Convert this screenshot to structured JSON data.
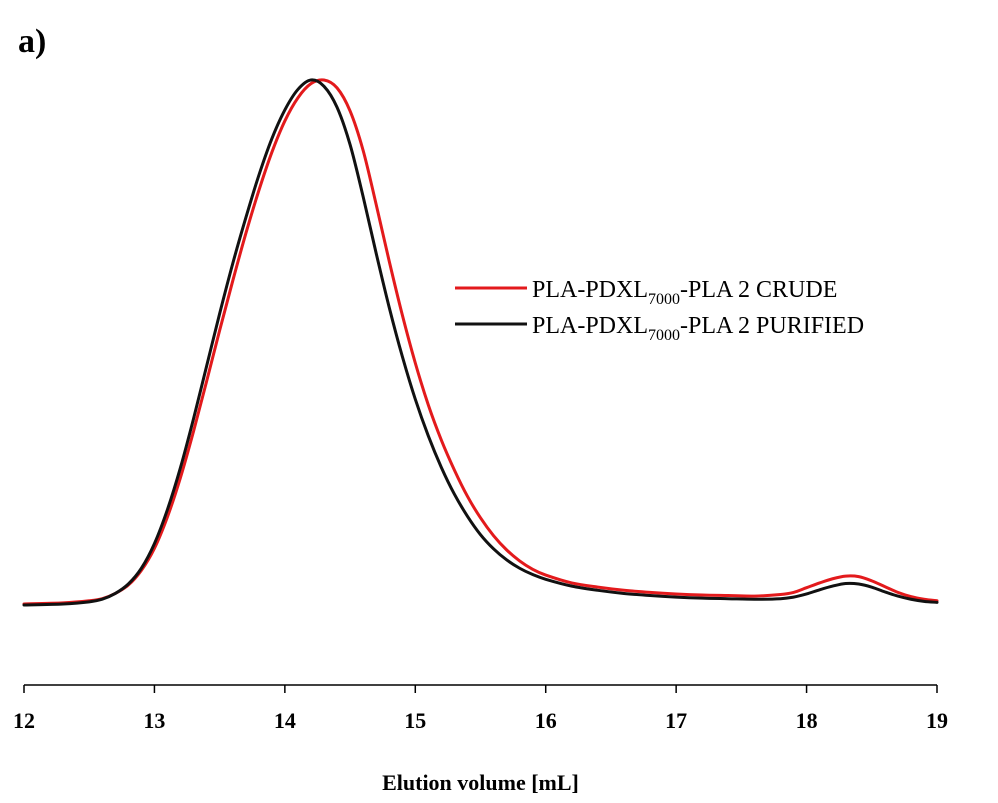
{
  "panel_label": "a)",
  "chart_data": {
    "type": "line",
    "title": "",
    "xlabel": "Elution volume [mL]",
    "ylabel": "",
    "xlim": [
      12,
      19
    ],
    "ylim": [
      -0.16,
      1.0
    ],
    "xticks": [
      12,
      13,
      14,
      15,
      16,
      17,
      18,
      19
    ],
    "grid": false,
    "legend_position": "right",
    "series": [
      {
        "name": "PLA-PDXL7000-PLA 2 CRUDE",
        "name_parts": {
          "prefix": "PLA-PDXL",
          "sub": "7000",
          "suffix": "-PLA 2 CRUDE"
        },
        "color": "#e31a1c",
        "points": [
          [
            12.0,
            0.002
          ],
          [
            12.3,
            0.004
          ],
          [
            12.5,
            0.008
          ],
          [
            12.6,
            0.012
          ],
          [
            12.7,
            0.022
          ],
          [
            12.8,
            0.038
          ],
          [
            12.9,
            0.066
          ],
          [
            13.0,
            0.108
          ],
          [
            13.1,
            0.168
          ],
          [
            13.2,
            0.243
          ],
          [
            13.3,
            0.331
          ],
          [
            13.4,
            0.426
          ],
          [
            13.5,
            0.523
          ],
          [
            13.6,
            0.617
          ],
          [
            13.7,
            0.707
          ],
          [
            13.8,
            0.789
          ],
          [
            13.9,
            0.862
          ],
          [
            14.0,
            0.922
          ],
          [
            14.1,
            0.966
          ],
          [
            14.2,
            0.993
          ],
          [
            14.3,
            1.0
          ],
          [
            14.4,
            0.985
          ],
          [
            14.5,
            0.941
          ],
          [
            14.6,
            0.866
          ],
          [
            14.7,
            0.763
          ],
          [
            14.8,
            0.655
          ],
          [
            14.9,
            0.553
          ],
          [
            15.0,
            0.461
          ],
          [
            15.1,
            0.381
          ],
          [
            15.2,
            0.314
          ],
          [
            15.3,
            0.257
          ],
          [
            15.4,
            0.207
          ],
          [
            15.5,
            0.166
          ],
          [
            15.6,
            0.132
          ],
          [
            15.7,
            0.105
          ],
          [
            15.8,
            0.084
          ],
          [
            15.9,
            0.068
          ],
          [
            16.0,
            0.057
          ],
          [
            16.2,
            0.042
          ],
          [
            16.4,
            0.034
          ],
          [
            16.6,
            0.028
          ],
          [
            16.8,
            0.024
          ],
          [
            17.0,
            0.021
          ],
          [
            17.2,
            0.019
          ],
          [
            17.4,
            0.018
          ],
          [
            17.6,
            0.017
          ],
          [
            17.8,
            0.02
          ],
          [
            17.9,
            0.024
          ],
          [
            18.0,
            0.033
          ],
          [
            18.1,
            0.042
          ],
          [
            18.2,
            0.05
          ],
          [
            18.3,
            0.055
          ],
          [
            18.4,
            0.054
          ],
          [
            18.5,
            0.046
          ],
          [
            18.6,
            0.035
          ],
          [
            18.7,
            0.024
          ],
          [
            18.8,
            0.016
          ],
          [
            18.9,
            0.011
          ],
          [
            19.0,
            0.008
          ]
        ]
      },
      {
        "name": "PLA-PDXL7000-PLA 2 PURIFIED",
        "name_parts": {
          "prefix": "PLA-PDXL",
          "sub": "7000",
          "suffix": "-PLA 2 PURIFIED"
        },
        "color": "#111111",
        "points": [
          [
            12.0,
            0.0
          ],
          [
            12.3,
            0.002
          ],
          [
            12.5,
            0.006
          ],
          [
            12.6,
            0.011
          ],
          [
            12.7,
            0.022
          ],
          [
            12.8,
            0.04
          ],
          [
            12.9,
            0.07
          ],
          [
            13.0,
            0.117
          ],
          [
            13.1,
            0.182
          ],
          [
            13.2,
            0.262
          ],
          [
            13.3,
            0.355
          ],
          [
            13.4,
            0.455
          ],
          [
            13.5,
            0.555
          ],
          [
            13.6,
            0.65
          ],
          [
            13.7,
            0.737
          ],
          [
            13.8,
            0.818
          ],
          [
            13.9,
            0.888
          ],
          [
            14.0,
            0.943
          ],
          [
            14.1,
            0.982
          ],
          [
            14.2,
            1.0
          ],
          [
            14.3,
            0.988
          ],
          [
            14.4,
            0.948
          ],
          [
            14.5,
            0.877
          ],
          [
            14.6,
            0.778
          ],
          [
            14.7,
            0.67
          ],
          [
            14.8,
            0.567
          ],
          [
            14.9,
            0.474
          ],
          [
            15.0,
            0.392
          ],
          [
            15.1,
            0.322
          ],
          [
            15.2,
            0.262
          ],
          [
            15.3,
            0.211
          ],
          [
            15.4,
            0.169
          ],
          [
            15.5,
            0.134
          ],
          [
            15.6,
            0.107
          ],
          [
            15.7,
            0.086
          ],
          [
            15.8,
            0.07
          ],
          [
            15.9,
            0.058
          ],
          [
            16.0,
            0.049
          ],
          [
            16.2,
            0.036
          ],
          [
            16.4,
            0.028
          ],
          [
            16.6,
            0.022
          ],
          [
            16.8,
            0.018
          ],
          [
            17.0,
            0.015
          ],
          [
            17.2,
            0.013
          ],
          [
            17.4,
            0.012
          ],
          [
            17.6,
            0.011
          ],
          [
            17.8,
            0.012
          ],
          [
            17.9,
            0.015
          ],
          [
            18.0,
            0.021
          ],
          [
            18.1,
            0.029
          ],
          [
            18.2,
            0.036
          ],
          [
            18.3,
            0.041
          ],
          [
            18.4,
            0.04
          ],
          [
            18.5,
            0.034
          ],
          [
            18.6,
            0.025
          ],
          [
            18.7,
            0.017
          ],
          [
            18.8,
            0.011
          ],
          [
            18.9,
            0.007
          ],
          [
            19.0,
            0.005
          ]
        ]
      }
    ]
  }
}
